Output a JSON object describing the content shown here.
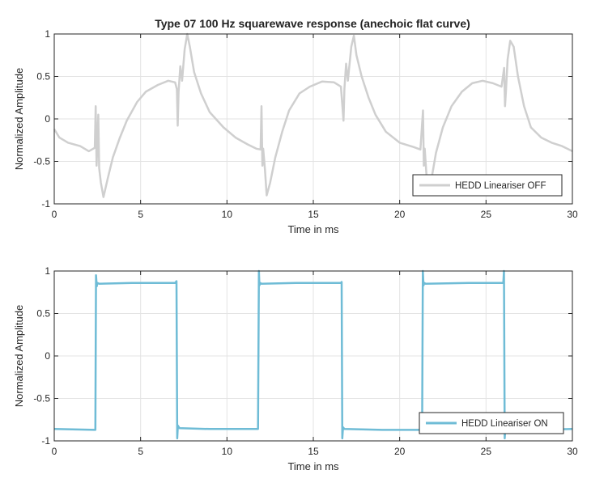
{
  "figure": {
    "title": "Type 07 100 Hz squarewave response (anechoic flat curve)"
  },
  "chart_data": [
    {
      "type": "line",
      "title": "Type 07 100 Hz squarewave response (anechoic flat curve)",
      "xlabel": "Time in ms",
      "ylabel": "Normalized Amplitude",
      "xlim": [
        0,
        30
      ],
      "ylim": [
        -1,
        1
      ],
      "xticks": [
        0,
        5,
        10,
        15,
        20,
        25,
        30
      ],
      "yticks": [
        -1,
        -0.5,
        0,
        0.5,
        1
      ],
      "xtick_labels": [
        "0",
        "5",
        "10",
        "15",
        "20",
        "25",
        "30"
      ],
      "ytick_labels": [
        "-1",
        "-0.5",
        "0",
        "0.5",
        "1"
      ],
      "grid": true,
      "legend": "bottom-right",
      "series": [
        {
          "name": "HEDD Lineariser OFF",
          "color": "#cfcfcf",
          "x": [
            0,
            0.3,
            0.8,
            1.5,
            2.0,
            2.35,
            2.4,
            2.45,
            2.5,
            2.55,
            2.6,
            2.7,
            2.85,
            3.1,
            3.4,
            3.8,
            4.2,
            4.8,
            5.3,
            6.0,
            6.6,
            7.0,
            7.1,
            7.15,
            7.2,
            7.3,
            7.4,
            7.55,
            7.7,
            7.85,
            8.1,
            8.5,
            9.0,
            9.8,
            10.5,
            11.2,
            11.7,
            11.95,
            12.0,
            12.05,
            12.1,
            12.2,
            12.3,
            12.5,
            12.8,
            13.2,
            13.6,
            14.2,
            14.8,
            15.5,
            16.2,
            16.6,
            16.75,
            16.8,
            16.9,
            17.0,
            17.2,
            17.35,
            17.5,
            17.8,
            18.2,
            18.6,
            19.2,
            20.0,
            20.8,
            21.2,
            21.35,
            21.4,
            21.45,
            21.55,
            21.7,
            21.85,
            22.1,
            22.5,
            23.0,
            23.6,
            24.2,
            24.8,
            25.4,
            25.9,
            26.05,
            26.1,
            26.15,
            26.25,
            26.4,
            26.6,
            26.85,
            27.2,
            27.6,
            28.2,
            28.8,
            29.4,
            30.0
          ],
          "y": [
            -0.12,
            -0.22,
            -0.28,
            -0.32,
            -0.38,
            -0.34,
            0.15,
            -0.55,
            -0.3,
            0.05,
            -0.58,
            -0.75,
            -0.92,
            -0.7,
            -0.45,
            -0.22,
            -0.02,
            0.2,
            0.32,
            0.4,
            0.45,
            0.43,
            0.35,
            -0.08,
            0.32,
            0.62,
            0.45,
            0.82,
            1.0,
            0.85,
            0.55,
            0.3,
            0.08,
            -0.1,
            -0.22,
            -0.3,
            -0.35,
            -0.36,
            0.15,
            -0.55,
            -0.35,
            -0.6,
            -0.9,
            -0.75,
            -0.45,
            -0.15,
            0.1,
            0.3,
            0.38,
            0.44,
            0.43,
            0.38,
            -0.02,
            0.35,
            0.65,
            0.45,
            0.85,
            0.98,
            0.75,
            0.5,
            0.25,
            0.05,
            -0.15,
            -0.28,
            -0.33,
            -0.36,
            0.1,
            -0.55,
            -0.35,
            -0.65,
            -0.88,
            -0.7,
            -0.4,
            -0.1,
            0.15,
            0.32,
            0.42,
            0.45,
            0.42,
            0.38,
            0.6,
            0.15,
            0.32,
            0.7,
            0.92,
            0.85,
            0.5,
            0.15,
            -0.1,
            -0.22,
            -0.28,
            -0.32,
            -0.38
          ]
        }
      ]
    },
    {
      "type": "line",
      "title": "",
      "xlabel": "Time in ms",
      "ylabel": "Normalized Amplitude",
      "xlim": [
        0,
        30
      ],
      "ylim": [
        -1,
        1
      ],
      "xticks": [
        0,
        5,
        10,
        15,
        20,
        25,
        30
      ],
      "yticks": [
        -1,
        -0.5,
        0,
        0.5,
        1
      ],
      "xtick_labels": [
        "0",
        "5",
        "10",
        "15",
        "20",
        "25",
        "30"
      ],
      "ytick_labels": [
        "-1",
        "-0.5",
        "0",
        "0.5",
        "1"
      ],
      "grid": true,
      "legend": "bottom-right",
      "series": [
        {
          "name": "HEDD Lineariser ON",
          "color": "#6fbcd6",
          "x": [
            0,
            2.38,
            2.42,
            2.46,
            2.5,
            2.6,
            4.5,
            7.0,
            7.08,
            7.12,
            7.16,
            7.25,
            9.0,
            11.8,
            11.85,
            11.88,
            11.92,
            12.0,
            14.0,
            16.6,
            16.64,
            16.68,
            16.72,
            16.8,
            19.0,
            21.3,
            21.34,
            21.38,
            21.42,
            21.5,
            24.0,
            26.0,
            26.04,
            26.08,
            26.12,
            26.2,
            28.0,
            30.0
          ],
          "y": [
            -0.86,
            -0.87,
            0.95,
            0.82,
            0.86,
            0.85,
            0.86,
            0.86,
            0.88,
            -0.97,
            -0.82,
            -0.85,
            -0.86,
            -0.86,
            1.0,
            0.83,
            0.86,
            0.85,
            0.86,
            0.86,
            0.87,
            -0.97,
            -0.84,
            -0.86,
            -0.87,
            -0.87,
            1.0,
            0.83,
            0.86,
            0.85,
            0.86,
            0.86,
            1.0,
            -0.97,
            -0.85,
            -0.86,
            -0.87,
            -0.86
          ]
        }
      ]
    }
  ]
}
